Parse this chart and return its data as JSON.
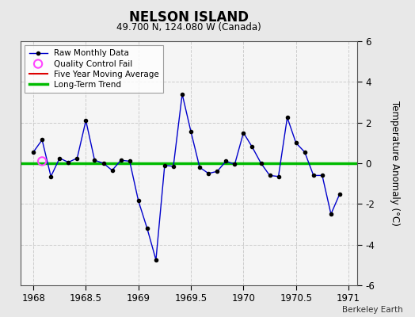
{
  "title": "NELSON ISLAND",
  "subtitle": "49.700 N, 124.080 W (Canada)",
  "ylabel": "Temperature Anomaly (°C)",
  "watermark": "Berkeley Earth",
  "xlim": [
    1967.88,
    1971.08
  ],
  "ylim": [
    -6,
    6
  ],
  "xticks": [
    1968,
    1968.5,
    1969,
    1969.5,
    1970,
    1970.5,
    1971
  ],
  "yticks": [
    -6,
    -4,
    -2,
    0,
    2,
    4,
    6
  ],
  "fig_facecolor": "#e8e8e8",
  "plot_facecolor": "#f5f5f5",
  "monthly_x": [
    1968.0,
    1968.083,
    1968.167,
    1968.25,
    1968.333,
    1968.417,
    1968.5,
    1968.583,
    1968.667,
    1968.75,
    1968.833,
    1968.917,
    1969.0,
    1969.083,
    1969.167,
    1969.25,
    1969.333,
    1969.417,
    1969.5,
    1969.583,
    1969.667,
    1969.75,
    1969.833,
    1969.917,
    1970.0,
    1970.083,
    1970.167,
    1970.25,
    1970.333,
    1970.417,
    1970.5,
    1970.583,
    1970.667,
    1970.75,
    1970.833,
    1970.917
  ],
  "monthly_y": [
    0.55,
    1.15,
    -0.65,
    0.25,
    0.05,
    0.25,
    2.1,
    0.15,
    0.0,
    -0.35,
    0.15,
    0.1,
    -1.85,
    -3.2,
    -4.75,
    -0.1,
    -0.15,
    3.4,
    1.55,
    -0.2,
    -0.5,
    -0.4,
    0.1,
    -0.05,
    1.5,
    0.8,
    0.0,
    -0.6,
    -0.65,
    2.25,
    1.0,
    0.55,
    -0.6,
    -0.6,
    -2.5,
    -1.5
  ],
  "qc_fail_x": [
    1968.083
  ],
  "qc_fail_y": [
    0.1
  ],
  "long_term_trend_y": [
    0.0,
    0.0
  ],
  "line_color": "#0000cc",
  "marker_color": "#000000",
  "qc_color": "#ff44ff",
  "trend_color": "#00bb00",
  "moving_avg_color": "#dd0000",
  "grid_color": "#cccccc"
}
